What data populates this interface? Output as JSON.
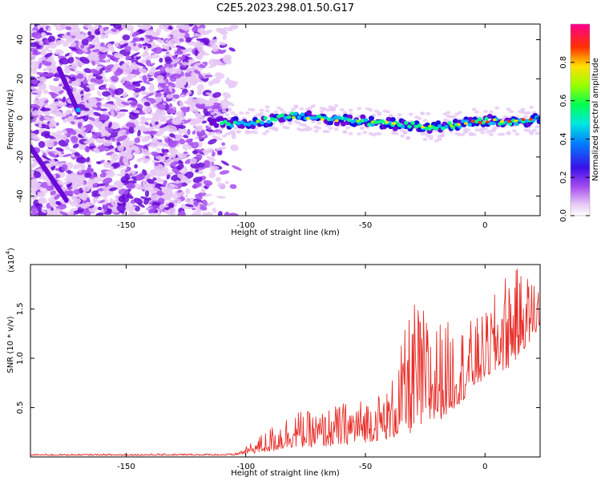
{
  "title": "C2E5.2023.298.01.50.G17",
  "colors": {
    "snr_line": "#e8302a",
    "colormap": [
      "#ffffff",
      "#e6c8f5",
      "#a64df0",
      "#6a0ad8",
      "#1a10e0",
      "#00b4ff",
      "#00ff8c",
      "#9aff00",
      "#ffe400",
      "#ff3000",
      "#ff008c"
    ]
  },
  "chart_data": [
    {
      "type": "heatmap",
      "name": "spectrogram",
      "title": "C2E5.2023.298.01.50.G17",
      "xlabel": "Height of straight line (km)",
      "ylabel": "Frequency (Hz)",
      "xlim": [
        -190,
        23
      ],
      "ylim": [
        -50,
        48
      ],
      "xticks": [
        -150,
        -100,
        -50,
        0
      ],
      "yticks": [
        -40,
        -20,
        0,
        20,
        40
      ],
      "features": {
        "noise_region_x": [
          -190,
          -103
        ],
        "dense_noise_x": [
          -190,
          -118
        ],
        "diagonal_trace": {
          "from": [
            -178,
            25
          ],
          "to": [
            -170,
            3
          ]
        },
        "bottom_left_trace": {
          "from": [
            -190,
            -15
          ],
          "to": [
            -175,
            -42
          ]
        },
        "signal_band": [
          {
            "x": -115,
            "y": -2.5
          },
          {
            "x": -100,
            "y": -3
          },
          {
            "x": -90,
            "y": -1
          },
          {
            "x": -80,
            "y": 1
          },
          {
            "x": -70,
            "y": 0
          },
          {
            "x": -60,
            "y": -1
          },
          {
            "x": -50,
            "y": -2
          },
          {
            "x": -40,
            "y": -3
          },
          {
            "x": -30,
            "y": -4
          },
          {
            "x": -20,
            "y": -5
          },
          {
            "x": -10,
            "y": -3
          },
          {
            "x": 0,
            "y": -1.5
          },
          {
            "x": 10,
            "y": -2
          },
          {
            "x": 23,
            "y": -1
          }
        ]
      },
      "colorbar": {
        "label": "Normalized spectral amplitude",
        "range": [
          0,
          1
        ],
        "ticks": [
          "0.0",
          "0.2",
          "0.4",
          "0.6",
          "0.8"
        ]
      }
    },
    {
      "type": "line",
      "name": "snr",
      "xlabel": "Height of straight line (km)",
      "ylabel": "SNR (10 * v/v)",
      "yscale_label": "(x10",
      "yscale_exp": "4",
      "xlim": [
        -190,
        23
      ],
      "ylim": [
        0,
        1.95
      ],
      "xticks": [
        -150,
        -100,
        -50,
        0
      ],
      "yticks": [
        0.5,
        1.0,
        1.5
      ],
      "ytick_labels": [
        "0.5",
        "1.0",
        "1.5"
      ],
      "envelope": [
        {
          "x": -190,
          "base": 0.015,
          "peak": 0.03
        },
        {
          "x": -105,
          "base": 0.015,
          "peak": 0.035
        },
        {
          "x": -100,
          "base": 0.03,
          "peak": 0.1
        },
        {
          "x": -90,
          "base": 0.05,
          "peak": 0.3
        },
        {
          "x": -80,
          "base": 0.1,
          "peak": 0.48
        },
        {
          "x": -70,
          "base": 0.1,
          "peak": 0.45
        },
        {
          "x": -60,
          "base": 0.12,
          "peak": 0.55
        },
        {
          "x": -50,
          "base": 0.15,
          "peak": 0.6
        },
        {
          "x": -40,
          "base": 0.18,
          "peak": 0.7
        },
        {
          "x": -30,
          "base": 0.25,
          "peak": 1.6
        },
        {
          "x": -20,
          "base": 0.35,
          "peak": 1.4
        },
        {
          "x": -10,
          "base": 0.55,
          "peak": 1.35
        },
        {
          "x": 0,
          "base": 0.8,
          "peak": 1.45
        },
        {
          "x": 10,
          "base": 0.9,
          "peak": 1.95
        },
        {
          "x": 23,
          "base": 1.3,
          "peak": 1.8
        }
      ]
    }
  ]
}
